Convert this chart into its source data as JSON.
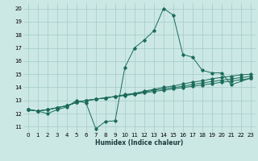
{
  "xlabel": "Humidex (Indice chaleur)",
  "bg_color": "#cce8e4",
  "grid_color": "#aacfcb",
  "line_color": "#1a6b5a",
  "xlim": [
    -0.5,
    23.5
  ],
  "ylim": [
    10.6,
    20.4
  ],
  "xticks": [
    0,
    1,
    2,
    3,
    4,
    5,
    6,
    7,
    8,
    9,
    10,
    11,
    12,
    13,
    14,
    15,
    16,
    17,
    18,
    19,
    20,
    21,
    22,
    23
  ],
  "yticks": [
    11,
    12,
    13,
    14,
    15,
    16,
    17,
    18,
    19,
    20
  ],
  "series": [
    [
      12.3,
      12.2,
      12.0,
      12.3,
      12.5,
      13.0,
      12.8,
      10.85,
      11.4,
      11.45,
      15.5,
      17.0,
      17.6,
      18.3,
      20.0,
      19.5,
      16.5,
      16.3,
      15.3,
      15.1,
      15.1,
      14.2,
      null,
      14.7
    ],
    [
      12.3,
      12.2,
      12.3,
      12.45,
      12.6,
      12.85,
      13.0,
      13.1,
      13.2,
      13.3,
      13.45,
      13.55,
      13.7,
      13.85,
      14.0,
      14.1,
      14.25,
      14.4,
      14.5,
      14.65,
      14.75,
      14.85,
      14.95,
      15.0
    ],
    [
      12.3,
      12.2,
      12.3,
      12.45,
      12.6,
      12.85,
      13.0,
      13.1,
      13.2,
      13.3,
      13.4,
      13.5,
      13.65,
      13.78,
      13.88,
      13.98,
      14.08,
      14.22,
      14.33,
      14.44,
      14.54,
      14.64,
      14.74,
      14.84
    ],
    [
      12.3,
      12.2,
      12.3,
      12.45,
      12.6,
      12.85,
      13.0,
      13.1,
      13.2,
      13.3,
      13.38,
      13.47,
      13.58,
      13.68,
      13.78,
      13.88,
      13.98,
      14.08,
      14.18,
      14.28,
      14.38,
      14.48,
      14.58,
      14.68
    ]
  ]
}
